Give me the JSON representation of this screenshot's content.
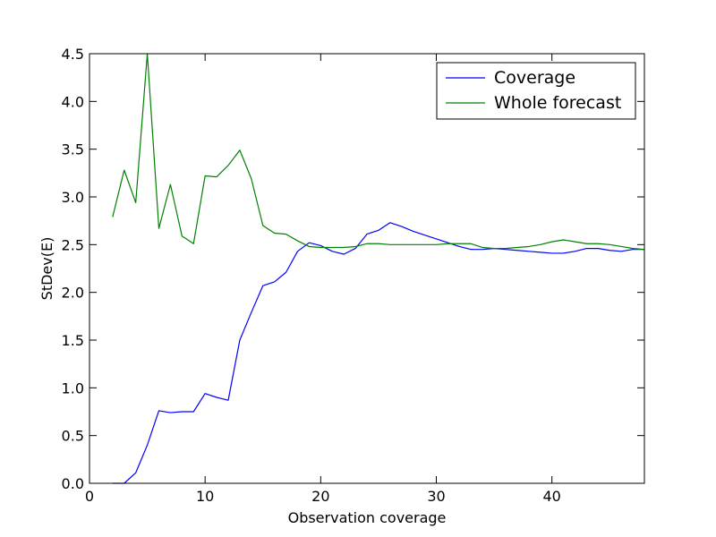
{
  "chart_data": {
    "type": "line",
    "title": "",
    "xlabel": "Observation coverage",
    "ylabel": "StDev(E)",
    "xlim": [
      0,
      48
    ],
    "ylim": [
      0.0,
      4.5
    ],
    "x_ticks": [
      0,
      10,
      20,
      30,
      40
    ],
    "x_tick_labels": [
      "0",
      "10",
      "20",
      "30",
      "40"
    ],
    "y_ticks": [
      0.0,
      0.5,
      1.0,
      1.5,
      2.0,
      2.5,
      3.0,
      3.5,
      4.0,
      4.5
    ],
    "y_tick_labels": [
      "0.0",
      "0.5",
      "1.0",
      "1.5",
      "2.0",
      "2.5",
      "3.0",
      "3.5",
      "4.0",
      "4.5"
    ],
    "grid": false,
    "legend_position": "top-right",
    "series": [
      {
        "name": "Coverage",
        "color": "#0000ff",
        "x": [
          2,
          3,
          4,
          5,
          6,
          7,
          8,
          9,
          10,
          11,
          12,
          13,
          14,
          15,
          16,
          17,
          18,
          19,
          20,
          21,
          22,
          23,
          24,
          25,
          26,
          27,
          28,
          29,
          30,
          31,
          32,
          33,
          34,
          35,
          36,
          37,
          38,
          39,
          40,
          41,
          42,
          43,
          44,
          45,
          46,
          47,
          48
        ],
        "y": [
          0.0,
          0.0,
          0.11,
          0.4,
          0.76,
          0.74,
          0.75,
          0.75,
          0.94,
          0.9,
          0.87,
          1.5,
          1.79,
          2.07,
          2.11,
          2.21,
          2.43,
          2.52,
          2.49,
          2.43,
          2.4,
          2.46,
          2.61,
          2.65,
          2.73,
          2.69,
          2.64,
          2.6,
          2.56,
          2.52,
          2.48,
          2.45,
          2.45,
          2.46,
          2.45,
          2.44,
          2.43,
          2.42,
          2.41,
          2.41,
          2.43,
          2.46,
          2.46,
          2.44,
          2.43,
          2.45,
          2.45
        ]
      },
      {
        "name": "Whole forecast",
        "color": "#008000",
        "x": [
          2,
          3,
          4,
          5,
          6,
          7,
          8,
          9,
          10,
          11,
          12,
          13,
          14,
          15,
          16,
          17,
          18,
          19,
          20,
          21,
          22,
          23,
          24,
          25,
          26,
          27,
          28,
          29,
          30,
          31,
          32,
          33,
          34,
          35,
          36,
          37,
          38,
          39,
          40,
          41,
          42,
          43,
          44,
          45,
          46,
          47,
          48
        ],
        "y": [
          2.79,
          3.28,
          2.94,
          4.5,
          2.67,
          3.13,
          2.59,
          2.51,
          3.22,
          3.21,
          3.33,
          3.49,
          3.19,
          2.7,
          2.62,
          2.61,
          2.54,
          2.48,
          2.47,
          2.47,
          2.47,
          2.48,
          2.51,
          2.51,
          2.5,
          2.5,
          2.5,
          2.5,
          2.5,
          2.51,
          2.51,
          2.51,
          2.47,
          2.46,
          2.46,
          2.47,
          2.48,
          2.5,
          2.53,
          2.55,
          2.53,
          2.51,
          2.51,
          2.5,
          2.48,
          2.46,
          2.45
        ]
      }
    ]
  }
}
